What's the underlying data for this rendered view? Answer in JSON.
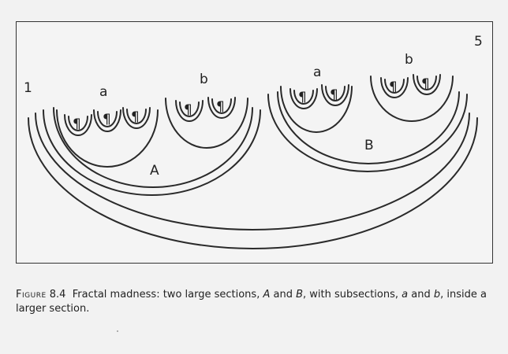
{
  "diagram": {
    "labels": {
      "start": "1",
      "end": "5",
      "section_a": "A",
      "section_b": "B",
      "sub_a_left": "a",
      "sub_b_left": "b",
      "sub_a_right": "a",
      "sub_b_right": "b"
    },
    "paragraph_mark": "¶",
    "paragraph_count": 10
  },
  "caption": {
    "figure_word": "Figure",
    "figure_number": "8.4",
    "parts": [
      {
        "text": "Fractal madness: two large sections, ",
        "italic": false
      },
      {
        "text": "A",
        "italic": true
      },
      {
        "text": " and ",
        "italic": false
      },
      {
        "text": "B",
        "italic": true
      },
      {
        "text": ", with subsections, ",
        "italic": false
      },
      {
        "text": "a",
        "italic": true
      },
      {
        "text": " and ",
        "italic": false
      },
      {
        "text": "b",
        "italic": true
      },
      {
        "text": ", inside a larger section.",
        "italic": false
      }
    ]
  }
}
